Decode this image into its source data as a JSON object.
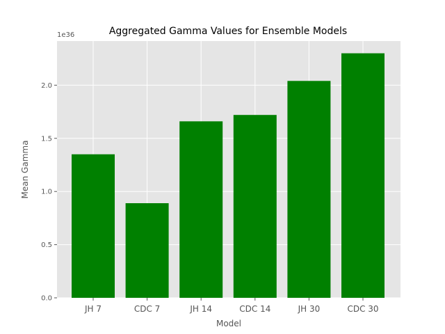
{
  "chart_data": {
    "type": "bar",
    "title": "Aggregated Gamma Values for Ensemble Models",
    "xlabel": "Model",
    "ylabel": "Mean Gamma",
    "y_offset_label": "1e36",
    "categories": [
      "JH 7",
      "CDC 7",
      "JH 14",
      "CDC 14",
      "JH 30",
      "CDC 30"
    ],
    "values": [
      1.35,
      0.89,
      1.66,
      1.72,
      2.04,
      2.3
    ],
    "ylim": [
      0,
      2.415
    ],
    "yticks": [
      0.0,
      0.5,
      1.0,
      1.5,
      2.0
    ],
    "ytick_labels": [
      "0.0",
      "0.5",
      "1.0",
      "1.5",
      "2.0"
    ],
    "grid": true,
    "colors": {
      "bar": "#008000",
      "plot_background": "#e5e5e5",
      "grid": "#ffffff",
      "text": "#555555",
      "title": "#000000"
    }
  }
}
